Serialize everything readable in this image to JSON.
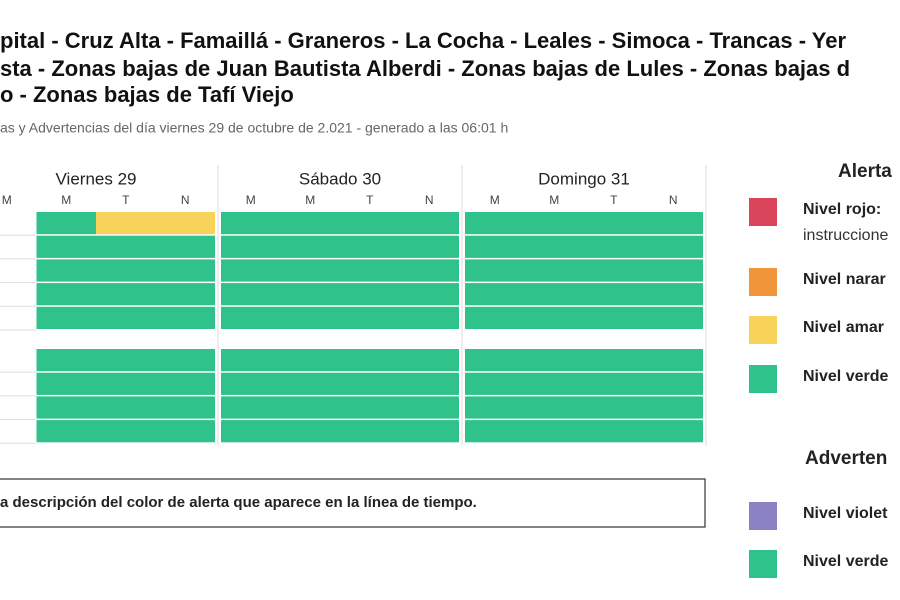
{
  "header": {
    "title_lines": [
      "pital - Cruz Alta - Famaillá - Graneros - La Cocha - Leales - Simoca - Trancas - Yer",
      "sta - Zonas bajas de Juan Bautista Alberdi - Zonas bajas de Lules - Zonas bajas d",
      "o - Zonas bajas de Tafí Viejo"
    ],
    "subtitle": "as y Advertencias del día viernes 29 de octubre de 2.021 - generado a las 06:01 h"
  },
  "timeline": {
    "days": [
      {
        "label": "Viernes 29",
        "periods": [
          "M",
          "M",
          "T",
          "N"
        ]
      },
      {
        "label": "Sábado 30",
        "periods": [
          "M",
          "M",
          "T",
          "N"
        ]
      },
      {
        "label": "Domingo 31",
        "periods": [
          "M",
          "M",
          "T",
          "N"
        ]
      }
    ],
    "groups": [
      {
        "rows": [
          [
            null,
            "#2fc28a",
            "#f7d35a",
            "#f7d35a",
            "#2fc28a",
            "#2fc28a",
            "#2fc28a",
            "#2fc28a",
            "#2fc28a",
            "#2fc28a",
            "#2fc28a",
            "#2fc28a"
          ],
          [
            null,
            "#2fc28a",
            "#2fc28a",
            "#2fc28a",
            "#2fc28a",
            "#2fc28a",
            "#2fc28a",
            "#2fc28a",
            "#2fc28a",
            "#2fc28a",
            "#2fc28a",
            "#2fc28a"
          ],
          [
            null,
            "#2fc28a",
            "#2fc28a",
            "#2fc28a",
            "#2fc28a",
            "#2fc28a",
            "#2fc28a",
            "#2fc28a",
            "#2fc28a",
            "#2fc28a",
            "#2fc28a",
            "#2fc28a"
          ],
          [
            null,
            "#2fc28a",
            "#2fc28a",
            "#2fc28a",
            "#2fc28a",
            "#2fc28a",
            "#2fc28a",
            "#2fc28a",
            "#2fc28a",
            "#2fc28a",
            "#2fc28a",
            "#2fc28a"
          ],
          [
            null,
            "#2fc28a",
            "#2fc28a",
            "#2fc28a",
            "#2fc28a",
            "#2fc28a",
            "#2fc28a",
            "#2fc28a",
            "#2fc28a",
            "#2fc28a",
            "#2fc28a",
            "#2fc28a"
          ]
        ]
      },
      {
        "rows": [
          [
            null,
            "#2fc28a",
            "#2fc28a",
            "#2fc28a",
            "#2fc28a",
            "#2fc28a",
            "#2fc28a",
            "#2fc28a",
            "#2fc28a",
            "#2fc28a",
            "#2fc28a",
            "#2fc28a"
          ],
          [
            null,
            "#2fc28a",
            "#2fc28a",
            "#2fc28a",
            "#2fc28a",
            "#2fc28a",
            "#2fc28a",
            "#2fc28a",
            "#2fc28a",
            "#2fc28a",
            "#2fc28a",
            "#2fc28a"
          ],
          [
            null,
            "#2fc28a",
            "#2fc28a",
            "#2fc28a",
            "#2fc28a",
            "#2fc28a",
            "#2fc28a",
            "#2fc28a",
            "#2fc28a",
            "#2fc28a",
            "#2fc28a",
            "#2fc28a"
          ],
          [
            null,
            "#2fc28a",
            "#2fc28a",
            "#2fc28a",
            "#2fc28a",
            "#2fc28a",
            "#2fc28a",
            "#2fc28a",
            "#2fc28a",
            "#2fc28a",
            "#2fc28a",
            "#2fc28a"
          ]
        ]
      }
    ]
  },
  "note": "a descripción del color de alerta que aparece en la línea de tiempo.",
  "legend": {
    "alert_title": "Alerta",
    "alert_items": [
      {
        "color": "#d9465b",
        "label": "Nivel rojo:",
        "detail": "instruccione"
      },
      {
        "color": "#f0953a",
        "label": "Nivel narar"
      },
      {
        "color": "#f7d35a",
        "label": "Nivel amar"
      },
      {
        "color": "#2fc28a",
        "label": "Nivel verde"
      }
    ],
    "warning_title": "Adverten",
    "warning_items": [
      {
        "color": "#8b82c6",
        "label": "Nivel violet"
      },
      {
        "color": "#2fc28a",
        "label": "Nivel verde"
      }
    ]
  }
}
